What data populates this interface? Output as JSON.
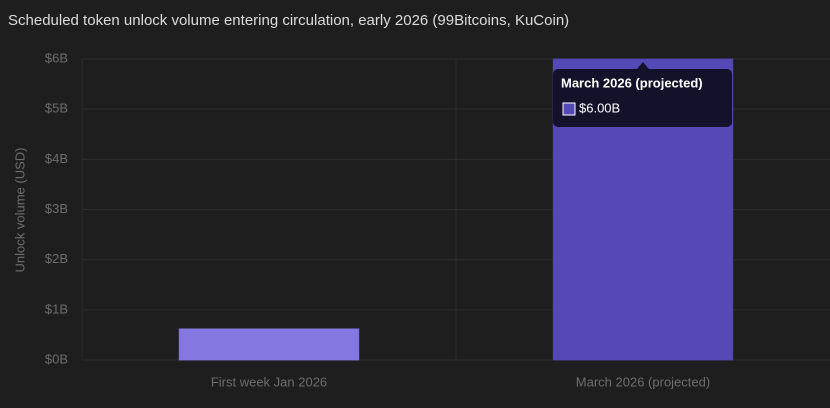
{
  "chart_data": {
    "type": "bar",
    "title": "Scheduled token unlock volume entering circulation, early 2026 (99Bitcoins, KuCoin)",
    "y_label": "Unlock volume (USD)",
    "categories": [
      "First week Jan 2026",
      "March 2026 (projected)"
    ],
    "values": [
      620000000,
      6000000000
    ],
    "value_labels": [
      null,
      "$6.00B"
    ],
    "colors": [
      "#8478e0",
      "#5549b5"
    ],
    "ylim": [
      0,
      6000000000
    ],
    "yticks": [
      {
        "value": 0,
        "label": "$0B"
      },
      {
        "value": 1000000000,
        "label": "$1B"
      },
      {
        "value": 2000000000,
        "label": "$2B"
      },
      {
        "value": 3000000000,
        "label": "$3B"
      },
      {
        "value": 4000000000,
        "label": "$4B"
      },
      {
        "value": 5000000000,
        "label": "$5B"
      },
      {
        "value": 6000000000,
        "label": "$6B"
      }
    ],
    "grid": true,
    "tooltip_index": 1
  }
}
